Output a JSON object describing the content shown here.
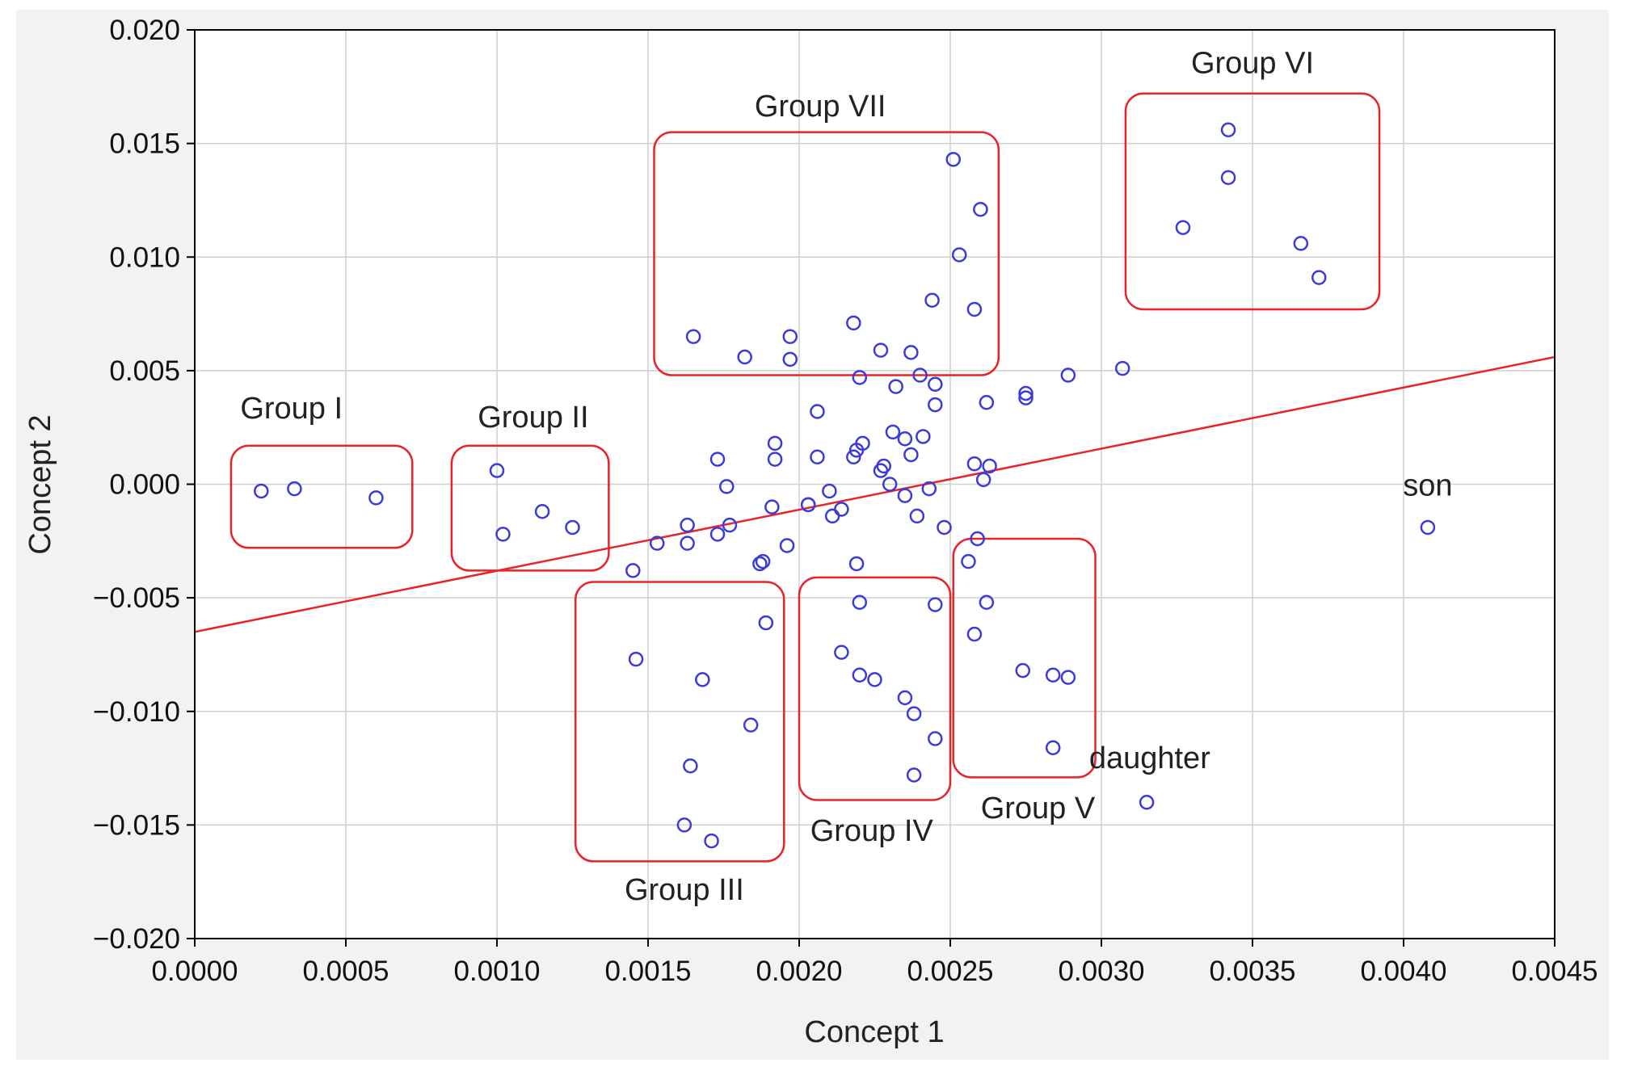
{
  "chart_data": {
    "type": "scatter",
    "title": "",
    "xlabel": "Concept 1",
    "ylabel": "Concept 2",
    "xlim": [
      0.0,
      0.0045
    ],
    "ylim": [
      -0.02,
      0.02
    ],
    "grid": true,
    "xticks": [
      0.0,
      0.0005,
      0.001,
      0.0015,
      0.002,
      0.0025,
      0.003,
      0.0035,
      0.004,
      0.0045
    ],
    "yticks": [
      -0.02,
      -0.015,
      -0.01,
      -0.005,
      0.0,
      0.005,
      0.01,
      0.015,
      0.02
    ],
    "xtick_labels": [
      "0.0000",
      "0.0005",
      "0.0010",
      "0.0015",
      "0.0020",
      "0.0025",
      "0.0030",
      "0.0035",
      "0.0040",
      "0.0045"
    ],
    "ytick_labels": [
      "−0.020",
      "−0.015",
      "−0.010",
      "−0.005",
      "0.000",
      "0.005",
      "0.010",
      "0.015",
      "0.020"
    ],
    "point_color": "#3b3bd9",
    "line_color": "#e8232a",
    "box_color": "#e8232a",
    "regression_line": {
      "x": [
        0.0,
        0.0045
      ],
      "y": [
        -0.0065,
        0.0056
      ]
    },
    "points": [
      [
        0.00022,
        -0.0003
      ],
      [
        0.00033,
        -0.0002
      ],
      [
        0.0006,
        -0.0006
      ],
      [
        0.001,
        0.0006
      ],
      [
        0.00102,
        -0.0022
      ],
      [
        0.00115,
        -0.0012
      ],
      [
        0.00125,
        -0.0019
      ],
      [
        0.00145,
        -0.0038
      ],
      [
        0.00153,
        -0.0026
      ],
      [
        0.00163,
        -0.0018
      ],
      [
        0.00163,
        -0.0026
      ],
      [
        0.00173,
        -0.0022
      ],
      [
        0.00177,
        -0.0018
      ],
      [
        0.00173,
        0.0011
      ],
      [
        0.00176,
        -0.0001
      ],
      [
        0.00187,
        -0.0035
      ],
      [
        0.00188,
        -0.0034
      ],
      [
        0.00191,
        -0.001
      ],
      [
        0.00192,
        0.0011
      ],
      [
        0.00192,
        0.0018
      ],
      [
        0.00196,
        -0.0027
      ],
      [
        0.00203,
        -0.0009
      ],
      [
        0.00203,
        -0.0009
      ],
      [
        0.00206,
        0.0032
      ],
      [
        0.00206,
        0.0012
      ],
      [
        0.0021,
        -0.0003
      ],
      [
        0.00211,
        -0.0014
      ],
      [
        0.00214,
        -0.0011
      ],
      [
        0.00218,
        0.0012
      ],
      [
        0.00219,
        0.0015
      ],
      [
        0.00221,
        0.0018
      ],
      [
        0.0022,
        0.0047
      ],
      [
        0.00227,
        0.0006
      ],
      [
        0.00228,
        0.0008
      ],
      [
        0.0023,
        0.0
      ],
      [
        0.00231,
        0.0023
      ],
      [
        0.00232,
        0.0043
      ],
      [
        0.00235,
        0.002
      ],
      [
        0.00235,
        -0.0005
      ],
      [
        0.00237,
        0.0013
      ],
      [
        0.00239,
        -0.0014
      ],
      [
        0.0024,
        0.0048
      ],
      [
        0.00241,
        0.0021
      ],
      [
        0.00243,
        -0.0002
      ],
      [
        0.00245,
        0.0035
      ],
      [
        0.00245,
        0.0044
      ],
      [
        0.00248,
        -0.0019
      ],
      [
        0.00258,
        0.0009
      ],
      [
        0.00259,
        -0.0024
      ],
      [
        0.00261,
        0.0002
      ],
      [
        0.00262,
        0.0036
      ],
      [
        0.00263,
        0.0008
      ],
      [
        0.00275,
        0.0038
      ],
      [
        0.00275,
        0.004
      ],
      [
        0.00289,
        0.0048
      ],
      [
        0.00307,
        0.0051
      ],
      [
        0.00165,
        0.0065
      ],
      [
        0.00182,
        0.0056
      ],
      [
        0.00197,
        0.0065
      ],
      [
        0.00197,
        0.0055
      ],
      [
        0.00218,
        0.0071
      ],
      [
        0.00227,
        0.0059
      ],
      [
        0.00237,
        0.0058
      ],
      [
        0.00244,
        0.0081
      ],
      [
        0.00251,
        0.0143
      ],
      [
        0.00253,
        0.0101
      ],
      [
        0.00258,
        0.0077
      ],
      [
        0.0026,
        0.0121
      ],
      [
        0.00327,
        0.0113
      ],
      [
        0.00342,
        0.0156
      ],
      [
        0.00342,
        0.0135
      ],
      [
        0.00366,
        0.0106
      ],
      [
        0.00372,
        0.0091
      ],
      [
        0.00146,
        -0.0077
      ],
      [
        0.00164,
        -0.0124
      ],
      [
        0.00162,
        -0.015
      ],
      [
        0.00168,
        -0.0086
      ],
      [
        0.00171,
        -0.0157
      ],
      [
        0.00184,
        -0.0106
      ],
      [
        0.00189,
        -0.0061
      ],
      [
        0.00219,
        -0.0035
      ],
      [
        0.0022,
        -0.0052
      ],
      [
        0.00214,
        -0.0074
      ],
      [
        0.0022,
        -0.0084
      ],
      [
        0.00225,
        -0.0086
      ],
      [
        0.00235,
        -0.0094
      ],
      [
        0.00238,
        -0.0101
      ],
      [
        0.00245,
        -0.0053
      ],
      [
        0.00245,
        -0.0112
      ],
      [
        0.00238,
        -0.0128
      ],
      [
        0.00256,
        -0.0034
      ],
      [
        0.00258,
        -0.0066
      ],
      [
        0.00262,
        -0.0052
      ],
      [
        0.00274,
        -0.0082
      ],
      [
        0.00284,
        -0.0084
      ],
      [
        0.00289,
        -0.0085
      ],
      [
        0.00284,
        -0.0116
      ],
      [
        0.00315,
        -0.014
      ],
      [
        0.00408,
        -0.0019
      ]
    ],
    "groups": [
      {
        "label": "Group I",
        "x0": 0.00012,
        "x1": 0.00072,
        "y0": -0.0028,
        "y1": 0.0017,
        "label_x": 0.00032,
        "label_y": 0.0029
      },
      {
        "label": "Group II",
        "x0": 0.00085,
        "x1": 0.00137,
        "y0": -0.0038,
        "y1": 0.0017,
        "label_x": 0.00112,
        "label_y": 0.0025
      },
      {
        "label": "Group III",
        "x0": 0.00126,
        "x1": 0.00195,
        "y0": -0.0166,
        "y1": -0.0043,
        "label_x": 0.00162,
        "label_y": -0.0183
      },
      {
        "label": "Group IV",
        "x0": 0.002,
        "x1": 0.0025,
        "y0": -0.0139,
        "y1": -0.0041,
        "label_x": 0.00224,
        "label_y": -0.0157
      },
      {
        "label": "Group V",
        "x0": 0.00251,
        "x1": 0.00298,
        "y0": -0.0129,
        "y1": -0.0024,
        "label_x": 0.00279,
        "label_y": -0.0147
      },
      {
        "label": "Group VI",
        "x0": 0.00308,
        "x1": 0.00392,
        "y0": 0.0077,
        "y1": 0.0172,
        "label_x": 0.0035,
        "label_y": 0.0181
      },
      {
        "label": "Group VII",
        "x0": 0.00152,
        "x1": 0.00266,
        "y0": 0.0048,
        "y1": 0.0155,
        "label_x": 0.00207,
        "label_y": 0.0162
      }
    ],
    "annotations": [
      {
        "text": "son",
        "x": 0.00408,
        "y": -0.0005
      },
      {
        "text": "daughter",
        "x": 0.00316,
        "y": -0.0125
      }
    ]
  }
}
